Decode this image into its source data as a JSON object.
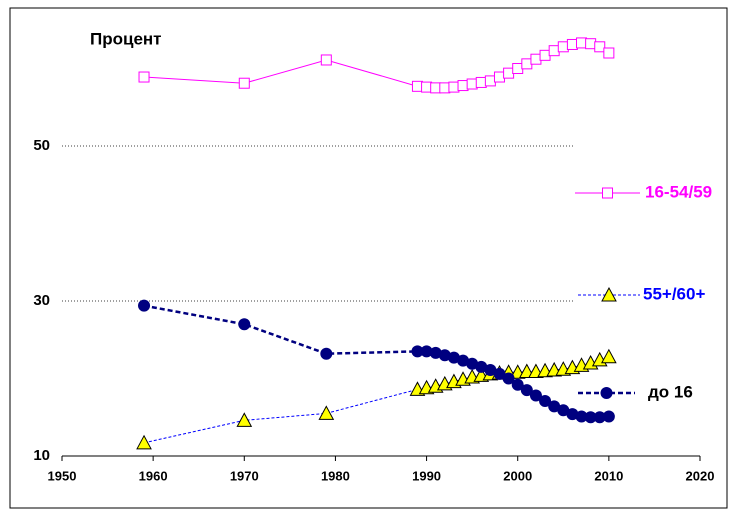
{
  "chart_data": {
    "type": "line",
    "y_title": "Процент",
    "x": [
      1959,
      1970,
      1979,
      1989,
      1990,
      1991,
      1992,
      1993,
      1994,
      1995,
      1996,
      1997,
      1998,
      1999,
      2000,
      2001,
      2002,
      2003,
      2004,
      2005,
      2006,
      2007,
      2008,
      2009,
      2010
    ],
    "series": [
      {
        "name": "16-54/59",
        "color": "#ff00ff",
        "line_color": "#ff00ff",
        "label_color": "#ff00ff",
        "marker": "square",
        "dashed": false,
        "values": [
          58.9,
          58.1,
          61.1,
          57.7,
          57.6,
          57.5,
          57.5,
          57.6,
          57.8,
          58.0,
          58.2,
          58.4,
          58.9,
          59.4,
          60.0,
          60.6,
          61.2,
          61.7,
          62.3,
          62.8,
          63.1,
          63.3,
          63.2,
          62.8,
          62.0
        ]
      },
      {
        "name": "55+/60+",
        "color": "#ffff00",
        "line_color": "#0000ff",
        "label_color": "#0000ff",
        "marker": "triangle",
        "dashed": true,
        "values": [
          11.7,
          14.6,
          15.5,
          18.6,
          18.8,
          19.0,
          19.3,
          19.6,
          19.9,
          20.2,
          20.4,
          20.6,
          20.7,
          20.8,
          20.8,
          20.9,
          20.9,
          21.0,
          21.1,
          21.2,
          21.4,
          21.7,
          22.0,
          22.4,
          22.8
        ]
      },
      {
        "name": "до 16",
        "color": "#000080",
        "line_color": "#000080",
        "label_color": "#000000",
        "marker": "circle",
        "dashed": true,
        "values": [
          29.4,
          27.0,
          23.2,
          23.5,
          23.5,
          23.3,
          23.0,
          22.7,
          22.3,
          21.9,
          21.5,
          21.1,
          20.6,
          20.0,
          19.2,
          18.5,
          17.8,
          17.1,
          16.4,
          15.9,
          15.4,
          15.1,
          15.0,
          15.0,
          15.1
        ]
      }
    ],
    "xlim": [
      1950,
      2020
    ],
    "xticks": [
      1950,
      1960,
      1970,
      1980,
      1990,
      2000,
      2010,
      2020
    ],
    "ylim": [
      10,
      67
    ],
    "yticks": [
      10,
      30,
      50
    ],
    "grid": true
  }
}
